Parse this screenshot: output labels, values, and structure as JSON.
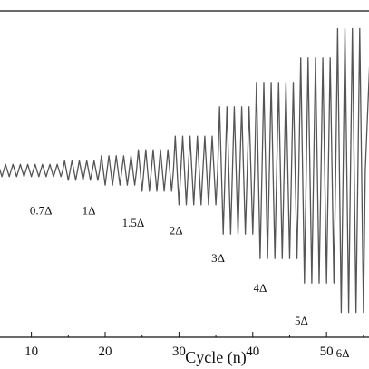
{
  "chart_data": {
    "type": "line",
    "title": "",
    "xlabel": "Cycle (n)",
    "ylabel": "",
    "xlim": [
      5.5,
      56
    ],
    "ylim": [
      -6.5,
      6.5
    ],
    "x_ticks": [
      10,
      20,
      30,
      40,
      50
    ],
    "grid": false,
    "legend": "none",
    "line_color": "#555555",
    "level_labels": [
      {
        "text": "0.7Δ",
        "x": 11.3,
        "y": -1.6
      },
      {
        "text": "1Δ",
        "x": 17.8,
        "y": -1.6
      },
      {
        "text": "1.5Δ",
        "x": 23.8,
        "y": -2.1
      },
      {
        "text": "2Δ",
        "x": 29.6,
        "y": -2.4
      },
      {
        "text": "3Δ",
        "x": 35.3,
        "y": -3.5
      },
      {
        "text": "4Δ",
        "x": 41.0,
        "y": -4.7
      },
      {
        "text": "5Δ",
        "x": 46.6,
        "y": -6.0
      },
      {
        "text": "6Δ",
        "x": 52.2,
        "y": -7.3
      }
    ],
    "series": [
      {
        "levels": [
          {
            "amplitude": 0.25,
            "cycles": [
              6,
              7,
              8,
              9,
              10,
              11,
              12,
              13,
              14
            ]
          },
          {
            "amplitude": 0.4,
            "cycles": [
              15,
              16,
              17,
              18,
              19
            ]
          },
          {
            "amplitude": 0.6,
            "cycles": [
              20,
              21,
              22,
              23,
              24
            ]
          },
          {
            "amplitude": 0.85,
            "cycles": [
              25,
              26,
              27,
              28,
              29
            ]
          },
          {
            "amplitude": 1.4,
            "cycles": [
              30,
              31,
              32,
              33,
              34,
              35
            ]
          },
          {
            "amplitude": 2.6,
            "cycles": [
              36,
              37,
              38,
              39,
              40
            ]
          },
          {
            "amplitude": 3.6,
            "cycles": [
              41,
              42,
              43,
              44,
              45,
              46
            ]
          },
          {
            "amplitude": 4.6,
            "cycles": [
              47,
              48,
              49,
              50,
              51
            ]
          },
          {
            "amplitude": 5.8,
            "cycles": [
              52,
              53,
              54,
              55
            ]
          }
        ]
      }
    ]
  }
}
